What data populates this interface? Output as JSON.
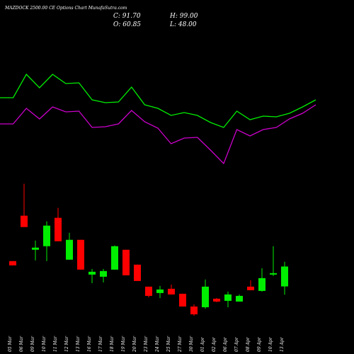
{
  "header": {
    "title": "MAZDOCK 2500.00 CE Options Chart MunafaSutra.com",
    "close": "C: 91.70",
    "high": "H: 99.00",
    "open": "O: 60.85",
    "low": "L: 48.00"
  },
  "chart_data": [
    {
      "type": "line",
      "ylim": [
        60,
        210
      ],
      "series": [
        {
          "color": "#00ee00",
          "values": [
            162,
            162,
            195,
            176,
            195,
            182,
            183,
            159,
            155,
            156,
            177,
            152,
            147,
            137,
            141,
            137,
            127,
            120,
            143,
            131,
            136,
            135,
            140,
            149,
            159
          ]
        },
        {
          "color": "#cc00cc",
          "values": [
            125,
            125,
            147,
            132,
            149,
            142,
            143,
            120,
            121,
            125,
            144,
            128,
            119,
            97,
            105,
            106,
            88,
            69,
            117,
            108,
            117,
            120,
            132,
            140,
            152
          ]
        }
      ]
    },
    {
      "type": "candlestick",
      "ylim": [
        0,
        225
      ],
      "up_color": "#00ee00",
      "down_color": "#ff0000",
      "categories": [
        "05 Mar",
        "06 Mar",
        "09 Mar",
        "10 Mar",
        "11 Mar",
        "12 Mar",
        "13 Mar",
        "16 Mar",
        "17 Mar",
        "18 Mar",
        "19 Mar",
        "20 Mar",
        "23 Mar",
        "24 Mar",
        "25 Mar",
        "27 Mar",
        "30 Mar",
        "01 Apr",
        "02 Apr",
        "06 Apr",
        "07 Apr",
        "08 Apr",
        "09 Apr",
        "10 Apr",
        "13 Apr"
      ],
      "open": [
        100.1,
        170.5,
        117.7,
        123.2,
        167.2,
        102.3,
        133.1,
        79.2,
        75.9,
        86.9,
        117.7,
        94.6,
        60.5,
        50.6,
        57.2,
        49.5,
        29.7,
        28.6,
        41.8,
        38.5,
        37.4,
        60.5,
        53.9,
        79.2,
        60.85
      ],
      "high": [
        100.1,
        220,
        132,
        161.7,
        182.6,
        144.1,
        133.1,
        88,
        88,
        124.3,
        117.7,
        94.6,
        60.5,
        61.6,
        63.8,
        49.5,
        33,
        71.5,
        42.9,
        52.8,
        48.4,
        70.4,
        89.1,
        123.2,
        99
      ],
      "low": [
        93.5,
        152.9,
        101.2,
        100.1,
        130.9,
        102.3,
        86.9,
        66,
        67.1,
        86.9,
        78.1,
        69.3,
        44,
        42.9,
        48.4,
        29.7,
        15.4,
        26.4,
        36.3,
        28.6,
        37.4,
        55,
        52.8,
        77,
        48
      ],
      "close": [
        93.5,
        152.9,
        121,
        155.1,
        130.9,
        133.1,
        86.9,
        83.6,
        84.7,
        123.2,
        78.1,
        69.3,
        46.2,
        56.1,
        48.4,
        29.7,
        17.6,
        60.5,
        37.4,
        48.4,
        46.2,
        55,
        73.7,
        81.4,
        91.7
      ]
    }
  ]
}
